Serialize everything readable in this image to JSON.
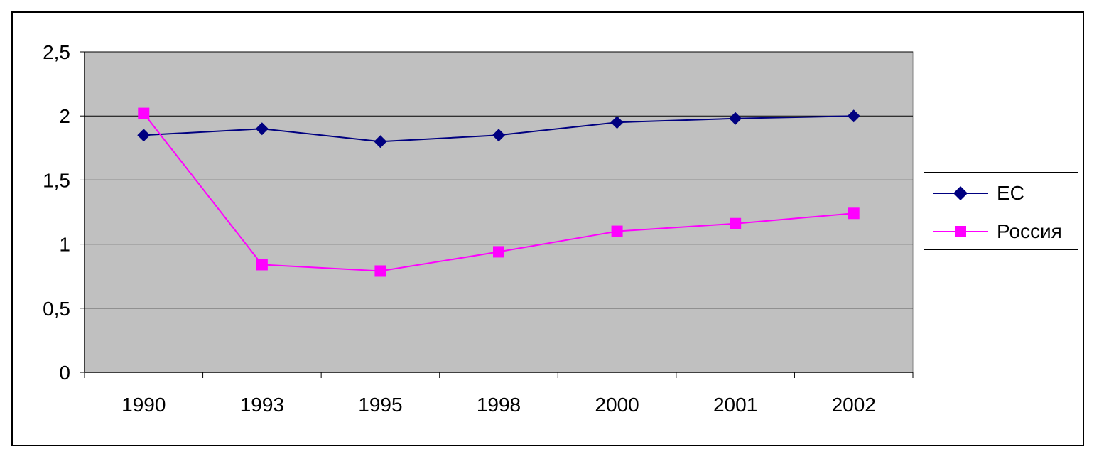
{
  "chart_data": {
    "type": "line",
    "categories": [
      "1990",
      "1993",
      "1995",
      "1998",
      "2000",
      "2001",
      "2002"
    ],
    "y_tick_labels": [
      "0",
      "0,5",
      "1",
      "1,5",
      "2",
      "2,5"
    ],
    "ylim": [
      0,
      2.5
    ],
    "grid": true,
    "legend_position": "right",
    "plot_background": "#c0c0c0",
    "series": [
      {
        "name": "ЕС",
        "color": "#000080",
        "marker": "diamond",
        "values": [
          1.85,
          1.9,
          1.8,
          1.85,
          1.95,
          1.98,
          2.0
        ]
      },
      {
        "name": "Россия",
        "color": "#ff00ff",
        "marker": "square",
        "values": [
          2.02,
          0.84,
          0.79,
          0.94,
          1.1,
          1.16,
          1.24
        ]
      }
    ]
  }
}
